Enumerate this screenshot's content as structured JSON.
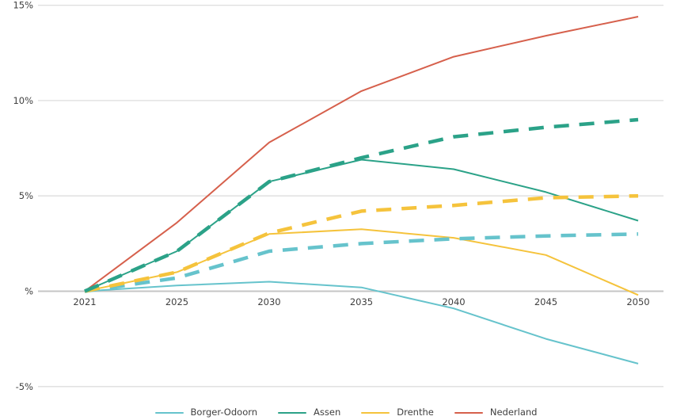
{
  "page": {
    "background": "#ffffff"
  },
  "colors": {
    "grid": "#dedede",
    "zero_axis": "#c6c6c6",
    "text": "#404040"
  },
  "chart_data": {
    "type": "line",
    "title": "",
    "xlabel": "",
    "ylabel": "",
    "grid": true,
    "legend_position": "bottom",
    "x_tick_labels": [
      "2021",
      "2025",
      "2030",
      "2035",
      "2040",
      "2045",
      "2050"
    ],
    "y_axis_ticks": [
      {
        "value": 15,
        "label": "15%"
      },
      {
        "value": 10,
        "label": "10%"
      },
      {
        "value": 5,
        "label": "5%"
      },
      {
        "value": 0,
        "label": "%"
      },
      {
        "value": -5,
        "label": "-5%"
      }
    ],
    "ylim": [
      -6.8,
      15.3
    ],
    "series": [
      {
        "name": "Nederland",
        "variant": "solid",
        "color": "#d6604c",
        "values": [
          0,
          3.6,
          7.8,
          10.5,
          12.3,
          13.4,
          14.4
        ]
      },
      {
        "name": "Assen",
        "variant": "solid",
        "color": "#2ba288",
        "values": [
          0,
          2.1,
          5.75,
          6.9,
          6.4,
          5.2,
          3.7
        ]
      },
      {
        "name": "Drenthe",
        "variant": "solid",
        "color": "#f5c33c",
        "values": [
          0,
          1.0,
          3.0,
          3.25,
          2.8,
          1.9,
          -0.2
        ]
      },
      {
        "name": "Borger-Odoorn",
        "variant": "solid",
        "color": "#66c3cc",
        "values": [
          0,
          0.3,
          0.5,
          0.2,
          -0.9,
          -2.5,
          -3.8
        ]
      },
      {
        "name": "Borger-Odoorn",
        "variant": "dashed",
        "color": "#66c3cc",
        "values": [
          0,
          0.7,
          2.1,
          2.5,
          2.75,
          2.9,
          3.0
        ]
      },
      {
        "name": "Drenthe",
        "variant": "dashed",
        "color": "#f5c33c",
        "values": [
          0,
          1.0,
          3.05,
          4.2,
          4.5,
          4.9,
          5.0
        ]
      },
      {
        "name": "Assen",
        "variant": "dashed",
        "color": "#2ba288",
        "values": [
          0,
          2.1,
          5.75,
          7.0,
          8.1,
          8.6,
          9.0
        ]
      }
    ],
    "legend": [
      {
        "label": "Borger-Odoorn",
        "color": "#66c3cc"
      },
      {
        "label": "Assen",
        "color": "#2ba288"
      },
      {
        "label": "Drenthe",
        "color": "#f5c33c"
      },
      {
        "label": "Nederland",
        "color": "#d6604c"
      }
    ]
  }
}
